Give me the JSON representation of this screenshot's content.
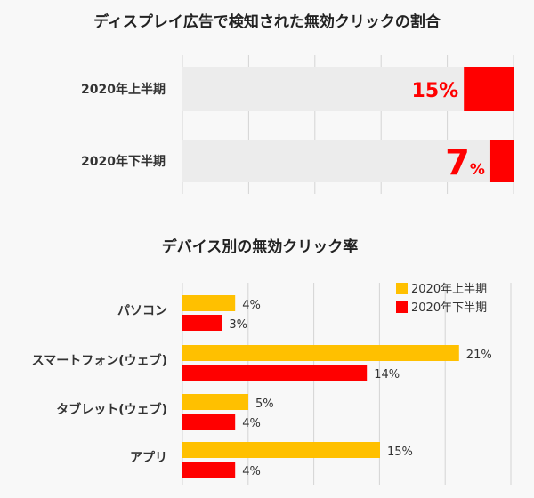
{
  "chart_data": [
    {
      "type": "bar",
      "orientation": "horizontal",
      "title": "ディスプレイ広告で検知された無効クリックの割合",
      "categories": [
        "2020年上半期",
        "2020年下半期"
      ],
      "values": [
        15,
        7
      ],
      "value_labels": [
        {
          "number": "15",
          "unit": "%"
        },
        {
          "number": "7",
          "unit": "%"
        }
      ],
      "xlim": [
        0,
        100
      ],
      "grid": "vertical",
      "colors": {
        "bar": "#ff0000",
        "track": "#ececec",
        "label": "#ff0000",
        "grid": "#d4d4d4"
      }
    },
    {
      "type": "bar",
      "orientation": "horizontal",
      "title": "デバイス別の無効クリック率",
      "categories": [
        "パソコン",
        "スマートフォン(ウェブ)",
        "タブレット(ウェブ)",
        "アプリ"
      ],
      "series": [
        {
          "name": "2020年上半期",
          "values": [
            4,
            21,
            5,
            15
          ],
          "labels": [
            "4%",
            "21%",
            "5%",
            "15%"
          ],
          "color": "#ffc000"
        },
        {
          "name": "2020年下半期",
          "values": [
            3,
            14,
            4,
            4
          ],
          "labels": [
            "3%",
            "14%",
            "4%",
            "4%"
          ],
          "color": "#ff0000"
        }
      ],
      "xlim": [
        0,
        25
      ],
      "grid": "vertical",
      "legend": "top-right"
    }
  ]
}
